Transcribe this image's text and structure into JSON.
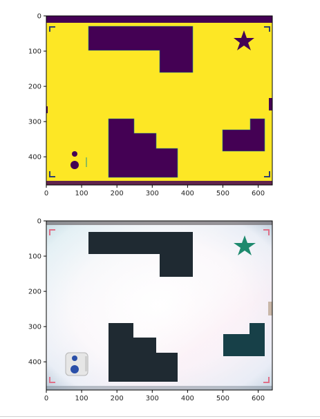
{
  "colors": {
    "mask_background": "#fde725",
    "mask_foreground": "#440154",
    "mask_edge": "#21918c",
    "photo_obstacle": "#1f2a32",
    "photo_obstacle_right": "#174048",
    "photo_star": "#1e8a6e",
    "photo_corner_marker": "#e07088",
    "robot_body": "#e6e6e6",
    "robot_dot": "#2a4fa8",
    "axis": "#000000"
  },
  "panels": [
    {
      "id": "mask",
      "xlim": [
        0,
        640
      ],
      "ylim": [
        480,
        0
      ],
      "xticks": [
        0,
        100,
        200,
        300,
        400,
        500,
        600
      ],
      "yticks": [
        0,
        100,
        200,
        300,
        400
      ]
    },
    {
      "id": "photo",
      "xlim": [
        0,
        640
      ],
      "ylim": [
        480,
        0
      ],
      "xticks": [
        0,
        100,
        200,
        300,
        400,
        500,
        600
      ],
      "yticks": [
        0,
        100,
        200,
        300,
        400
      ]
    }
  ],
  "icons": {
    "star": "star-icon",
    "robot": "robot-icon"
  }
}
